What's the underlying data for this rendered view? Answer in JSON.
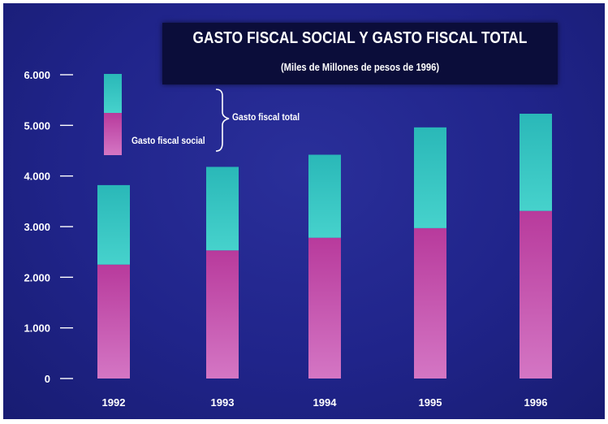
{
  "chart_data": {
    "type": "bar",
    "stacked": true,
    "title": "GASTO FISCAL SOCIAL Y GASTO FISCAL TOTAL",
    "subtitle": "(Miles de Millones de pesos de 1996)",
    "categories": [
      "1992",
      "1993",
      "1994",
      "1995",
      "1996"
    ],
    "series": [
      {
        "name": "Gasto fiscal social",
        "color": "#c24ca8",
        "values": [
          2250,
          2530,
          2780,
          2970,
          3310
        ]
      },
      {
        "name": "Gasto fiscal total",
        "color": "#2fc4c0",
        "values": [
          1570,
          1650,
          1640,
          1990,
          1920
        ]
      }
    ],
    "totals": [
      3820,
      4180,
      4420,
      4960,
      5230
    ],
    "ylim": [
      0,
      6000
    ],
    "yticks": [
      0,
      1000,
      2000,
      3000,
      4000,
      5000,
      6000
    ],
    "ytick_labels": [
      "0",
      "1.000",
      "2.000",
      "3.000",
      "4.000",
      "5.000",
      "6.000"
    ],
    "xlabel": "",
    "ylabel": "",
    "legend": {
      "social_label": "Gasto fiscal social",
      "total_label": "Gasto fiscal total",
      "placement": "top-left"
    },
    "grid": false
  },
  "colors": {
    "background": "#20248a",
    "title_box": "#0b0d3a",
    "social": "#c24ca8",
    "total_extra": "#2fc4c0",
    "text": "#ffffff"
  }
}
